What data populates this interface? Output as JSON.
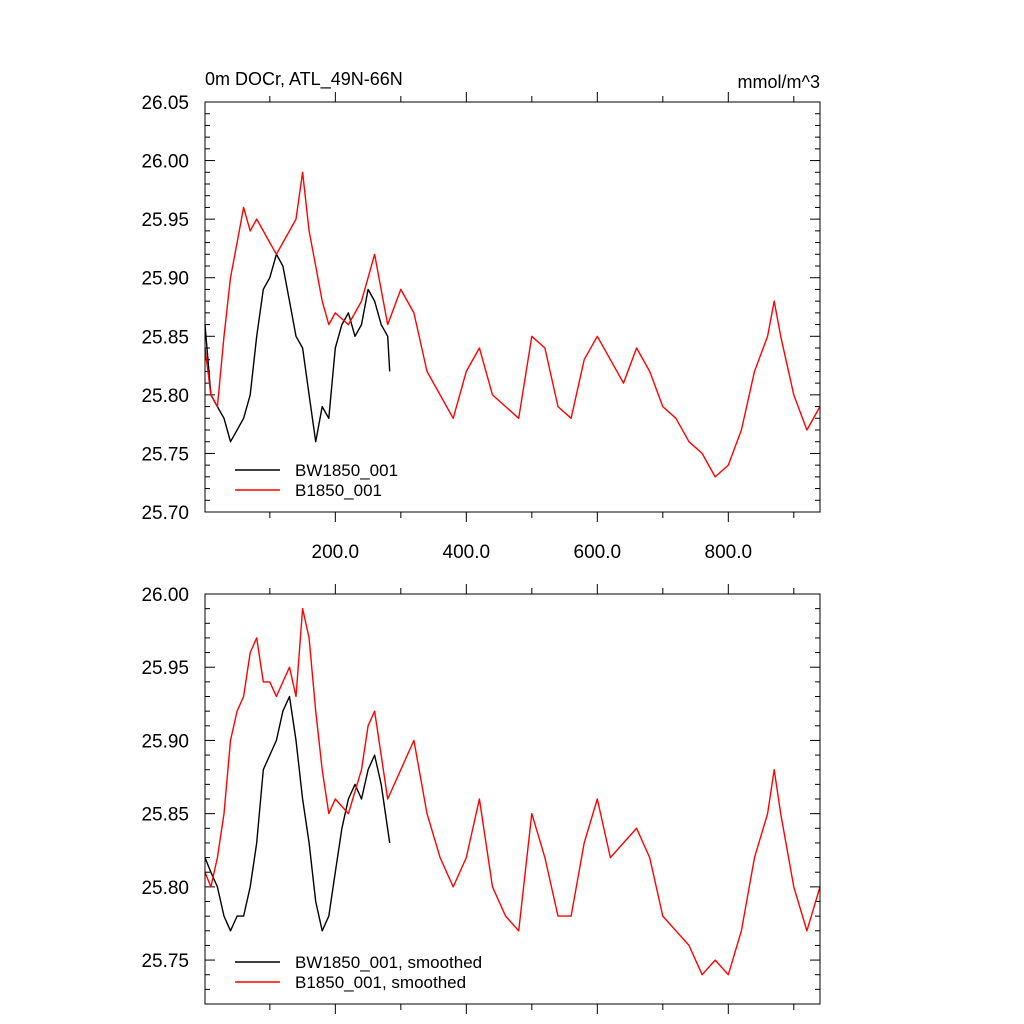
{
  "chart_data": [
    {
      "type": "line",
      "title": "0m DOCr, ATL_49N-66N",
      "units": "mmol/m^3",
      "xlim": [
        1,
        940
      ],
      "ylim": [
        25.7,
        26.05
      ],
      "xticks": [
        200,
        400,
        600,
        800
      ],
      "xtick_labels": [
        "200.0",
        "400.0",
        "600.0",
        "800.0"
      ],
      "yticks": [
        25.7,
        25.75,
        25.8,
        25.85,
        25.9,
        25.95,
        26.0,
        26.05
      ],
      "ytick_labels": [
        "25.70",
        "25.75",
        "25.80",
        "25.85",
        "25.90",
        "25.95",
        "26.00",
        "26.05"
      ],
      "legend_position": "bottom-left",
      "series": [
        {
          "name": "BW1850_001",
          "color": "#000000",
          "x": [
            1,
            10,
            20,
            30,
            40,
            50,
            60,
            70,
            80,
            90,
            100,
            110,
            120,
            130,
            140,
            150,
            160,
            170,
            180,
            190,
            200,
            210,
            220,
            230,
            240,
            250,
            260,
            270,
            280,
            283
          ],
          "y": [
            25.86,
            25.8,
            25.79,
            25.78,
            25.76,
            25.77,
            25.78,
            25.8,
            25.85,
            25.89,
            25.9,
            25.92,
            25.91,
            25.88,
            25.85,
            25.84,
            25.8,
            25.76,
            25.79,
            25.78,
            25.84,
            25.86,
            25.87,
            25.85,
            25.86,
            25.89,
            25.88,
            25.86,
            25.85,
            25.82
          ]
        },
        {
          "name": "B1850_001",
          "color": "#ff0000",
          "x": [
            1,
            10,
            20,
            30,
            40,
            50,
            60,
            70,
            80,
            90,
            100,
            110,
            120,
            130,
            140,
            150,
            160,
            170,
            180,
            190,
            200,
            220,
            240,
            250,
            260,
            280,
            300,
            320,
            340,
            360,
            380,
            400,
            420,
            440,
            460,
            480,
            500,
            520,
            540,
            560,
            580,
            600,
            620,
            640,
            660,
            680,
            700,
            720,
            740,
            760,
            780,
            800,
            820,
            840,
            860,
            870,
            880,
            900,
            920,
            940
          ],
          "y": [
            25.84,
            25.8,
            25.79,
            25.85,
            25.9,
            25.93,
            25.96,
            25.94,
            25.95,
            25.94,
            25.93,
            25.92,
            25.93,
            25.94,
            25.95,
            25.99,
            25.94,
            25.91,
            25.88,
            25.86,
            25.87,
            25.86,
            25.88,
            25.9,
            25.92,
            25.86,
            25.89,
            25.87,
            25.82,
            25.8,
            25.78,
            25.82,
            25.84,
            25.8,
            25.79,
            25.78,
            25.85,
            25.84,
            25.79,
            25.78,
            25.83,
            25.85,
            25.83,
            25.81,
            25.84,
            25.82,
            25.79,
            25.78,
            25.76,
            25.75,
            25.73,
            25.74,
            25.77,
            25.82,
            25.85,
            25.88,
            25.85,
            25.8,
            25.77,
            25.79
          ]
        }
      ]
    },
    {
      "type": "line",
      "xlim": [
        1,
        940
      ],
      "ylim": [
        25.72,
        26.0
      ],
      "yticks": [
        25.75,
        25.8,
        25.85,
        25.9,
        25.95,
        26.0
      ],
      "ytick_labels": [
        "25.75",
        "25.80",
        "25.85",
        "25.90",
        "25.95",
        "26.00"
      ],
      "legend_position": "bottom-left",
      "series": [
        {
          "name": "BW1850_001, smoothed",
          "color": "#000000",
          "x": [
            1,
            10,
            20,
            30,
            40,
            50,
            60,
            70,
            80,
            90,
            100,
            110,
            120,
            130,
            140,
            150,
            160,
            170,
            180,
            190,
            200,
            210,
            220,
            230,
            240,
            250,
            260,
            270,
            283
          ],
          "y": [
            25.82,
            25.81,
            25.8,
            25.78,
            25.77,
            25.78,
            25.78,
            25.8,
            25.83,
            25.88,
            25.89,
            25.9,
            25.92,
            25.93,
            25.9,
            25.86,
            25.83,
            25.79,
            25.77,
            25.78,
            25.81,
            25.84,
            25.86,
            25.87,
            25.86,
            25.88,
            25.89,
            25.87,
            25.83
          ]
        },
        {
          "name": "B1850_001, smoothed",
          "color": "#ff0000",
          "x": [
            1,
            10,
            20,
            30,
            40,
            50,
            60,
            70,
            80,
            90,
            100,
            110,
            120,
            130,
            140,
            150,
            160,
            170,
            180,
            190,
            200,
            220,
            240,
            250,
            260,
            280,
            300,
            320,
            340,
            360,
            380,
            400,
            420,
            440,
            460,
            480,
            500,
            520,
            540,
            560,
            580,
            600,
            620,
            640,
            660,
            680,
            700,
            720,
            740,
            760,
            780,
            800,
            820,
            840,
            860,
            870,
            880,
            900,
            920,
            940
          ],
          "y": [
            25.81,
            25.8,
            25.82,
            25.85,
            25.9,
            25.92,
            25.93,
            25.96,
            25.97,
            25.94,
            25.94,
            25.93,
            25.94,
            25.95,
            25.93,
            25.99,
            25.97,
            25.92,
            25.88,
            25.85,
            25.86,
            25.85,
            25.88,
            25.91,
            25.92,
            25.86,
            25.88,
            25.9,
            25.85,
            25.82,
            25.8,
            25.82,
            25.86,
            25.8,
            25.78,
            25.77,
            25.85,
            25.82,
            25.78,
            25.78,
            25.83,
            25.86,
            25.82,
            25.83,
            25.84,
            25.82,
            25.78,
            25.77,
            25.76,
            25.74,
            25.75,
            25.74,
            25.77,
            25.82,
            25.85,
            25.88,
            25.85,
            25.8,
            25.77,
            25.8
          ]
        }
      ]
    }
  ]
}
